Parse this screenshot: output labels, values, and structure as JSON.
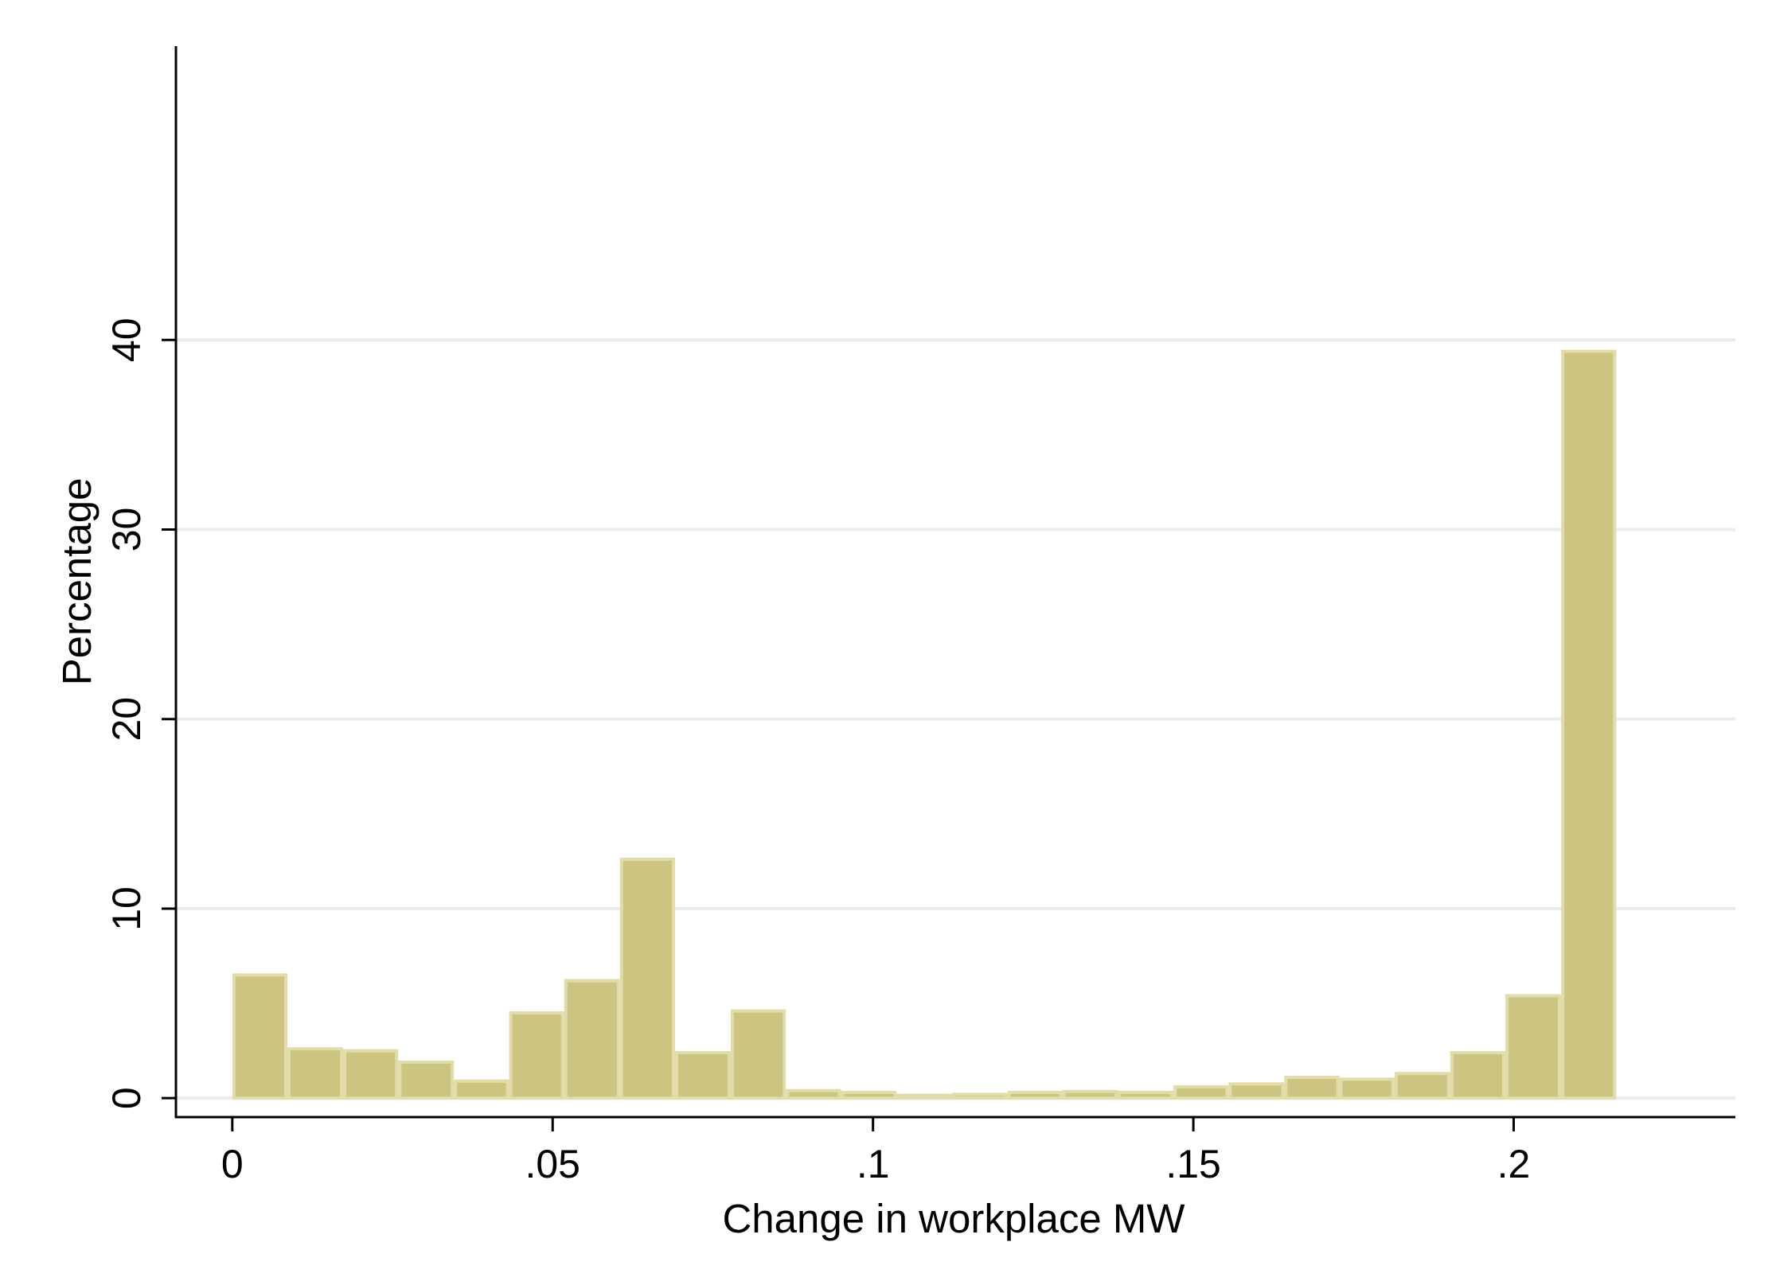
{
  "chart_data": {
    "type": "bar",
    "title": "",
    "xlabel": "Change in workplace MW",
    "ylabel": "Percentage",
    "xlim": [
      -0.0088,
      0.2346
    ],
    "ylim": [
      -1.0,
      55.5
    ],
    "x_ticks": [
      {
        "value": 0,
        "label": "0"
      },
      {
        "value": 0.05,
        "label": ".05"
      },
      {
        "value": 0.1,
        "label": ".1"
      },
      {
        "value": 0.15,
        "label": ".15"
      },
      {
        "value": 0.2,
        "label": ".2"
      }
    ],
    "y_ticks": [
      {
        "value": 0,
        "label": "0"
      },
      {
        "value": 10,
        "label": "10"
      },
      {
        "value": 20,
        "label": "20"
      },
      {
        "value": 30,
        "label": "30"
      },
      {
        "value": 40,
        "label": "40"
      }
    ],
    "grid": true,
    "bin_width": 0.00864,
    "bins": [
      {
        "x0": 0.0,
        "x1": 0.0086,
        "value": 6.5
      },
      {
        "x0": 0.0086,
        "x1": 0.0173,
        "value": 2.6
      },
      {
        "x0": 0.0173,
        "x1": 0.0259,
        "value": 2.5
      },
      {
        "x0": 0.0259,
        "x1": 0.0346,
        "value": 1.9
      },
      {
        "x0": 0.0346,
        "x1": 0.0432,
        "value": 0.9
      },
      {
        "x0": 0.0432,
        "x1": 0.0518,
        "value": 4.5
      },
      {
        "x0": 0.0518,
        "x1": 0.0605,
        "value": 6.2
      },
      {
        "x0": 0.0605,
        "x1": 0.0691,
        "value": 12.6
      },
      {
        "x0": 0.0691,
        "x1": 0.0778,
        "value": 2.4
      },
      {
        "x0": 0.0778,
        "x1": 0.0864,
        "value": 4.6
      },
      {
        "x0": 0.0864,
        "x1": 0.095,
        "value": 0.4
      },
      {
        "x0": 0.095,
        "x1": 0.1037,
        "value": 0.3
      },
      {
        "x0": 0.1037,
        "x1": 0.1123,
        "value": 0.15
      },
      {
        "x0": 0.1123,
        "x1": 0.121,
        "value": 0.2
      },
      {
        "x0": 0.121,
        "x1": 0.1296,
        "value": 0.3
      },
      {
        "x0": 0.1296,
        "x1": 0.1382,
        "value": 0.35
      },
      {
        "x0": 0.1382,
        "x1": 0.1469,
        "value": 0.3
      },
      {
        "x0": 0.1469,
        "x1": 0.1555,
        "value": 0.6
      },
      {
        "x0": 0.1555,
        "x1": 0.1642,
        "value": 0.75
      },
      {
        "x0": 0.1642,
        "x1": 0.1728,
        "value": 1.1
      },
      {
        "x0": 0.1728,
        "x1": 0.1814,
        "value": 1.0
      },
      {
        "x0": 0.1814,
        "x1": 0.1901,
        "value": 1.3
      },
      {
        "x0": 0.1901,
        "x1": 0.1987,
        "value": 2.4
      },
      {
        "x0": 0.1987,
        "x1": 0.2074,
        "value": 5.4
      },
      {
        "x0": 0.2074,
        "x1": 0.216,
        "value": 39.4
      }
    ],
    "bar_fill": "#ccc582",
    "bar_stroke": "#e2dcaa",
    "grid_color": "#e8eeed",
    "axis_color": "#000000"
  }
}
